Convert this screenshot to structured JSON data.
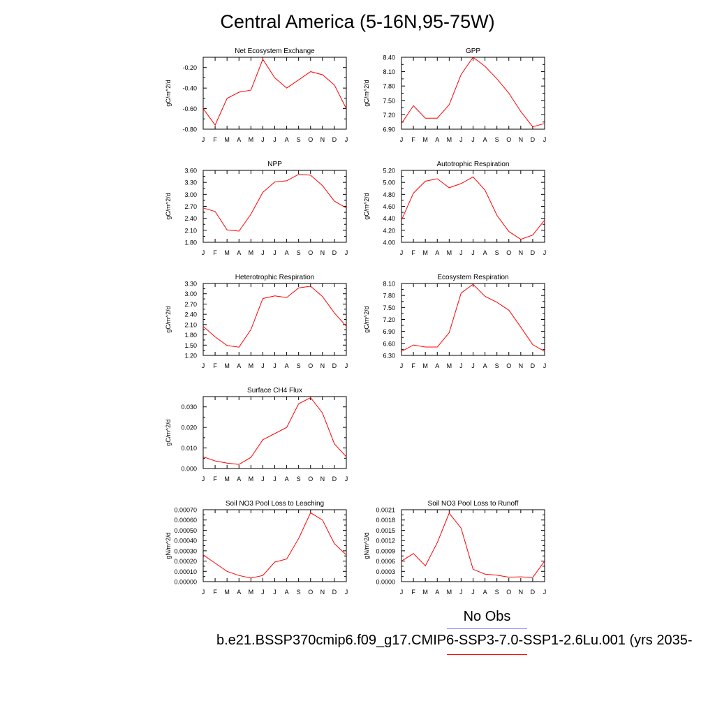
{
  "page": {
    "title": "Central America (5-16N,95-75W)",
    "legend_obs": "No Obs",
    "legend_run": "b.e21.BSSP370cmip6.f09_g17.CMIP6-SSP3-7.0-SSP1-2.6Lu.001 (yrs 2035-",
    "obs_color": "#8080ff",
    "run_color": "#ff0000"
  },
  "chart_data": [
    {
      "type": "line",
      "title": "Net Ecosystem Exchange",
      "ylabel": "gC/m^2/d",
      "categories": [
        "J",
        "F",
        "M",
        "A",
        "M",
        "J",
        "J",
        "A",
        "S",
        "O",
        "N",
        "D",
        "J"
      ],
      "yticks": [
        "-0.80",
        "-0.60",
        "-0.40",
        "-0.20"
      ],
      "ylim": [
        -0.8,
        -0.1
      ],
      "series": [
        {
          "values": [
            -0.6,
            -0.76,
            -0.5,
            -0.44,
            -0.42,
            -0.12,
            -0.3,
            -0.4,
            -0.32,
            -0.24,
            -0.27,
            -0.37,
            -0.6
          ]
        }
      ]
    },
    {
      "type": "line",
      "title": "GPP",
      "ylabel": "gC/m^2/d",
      "categories": [
        "J",
        "F",
        "M",
        "A",
        "M",
        "J",
        "J",
        "A",
        "S",
        "O",
        "N",
        "D",
        "J"
      ],
      "yticks": [
        "6.90",
        "7.20",
        "7.50",
        "7.80",
        "8.10",
        "8.40"
      ],
      "ylim": [
        6.9,
        8.4
      ],
      "series": [
        {
          "values": [
            7.02,
            7.39,
            7.13,
            7.13,
            7.41,
            8.04,
            8.4,
            8.21,
            7.95,
            7.65,
            7.27,
            6.95,
            7.02
          ]
        }
      ]
    },
    {
      "type": "line",
      "title": "NPP",
      "ylabel": "gC/m^2/d",
      "categories": [
        "J",
        "F",
        "M",
        "A",
        "M",
        "J",
        "J",
        "A",
        "S",
        "O",
        "N",
        "D",
        "J"
      ],
      "yticks": [
        "1.80",
        "2.10",
        "2.40",
        "2.70",
        "3.00",
        "3.30",
        "3.60"
      ],
      "ylim": [
        1.8,
        3.6
      ],
      "series": [
        {
          "values": [
            2.66,
            2.57,
            2.11,
            2.08,
            2.5,
            3.05,
            3.31,
            3.34,
            3.5,
            3.48,
            3.22,
            2.83,
            2.66
          ]
        }
      ]
    },
    {
      "type": "line",
      "title": "Autotrophic Respiration",
      "ylabel": "gC/m^2/d",
      "categories": [
        "J",
        "F",
        "M",
        "A",
        "M",
        "J",
        "J",
        "A",
        "S",
        "O",
        "N",
        "D",
        "J"
      ],
      "yticks": [
        "4.00",
        "4.20",
        "4.40",
        "4.60",
        "4.80",
        "5.00",
        "5.20"
      ],
      "ylim": [
        4.0,
        5.2
      ],
      "series": [
        {
          "values": [
            4.37,
            4.82,
            5.02,
            5.06,
            4.91,
            4.98,
            5.09,
            4.87,
            4.45,
            4.18,
            4.05,
            4.12,
            4.37
          ]
        }
      ]
    },
    {
      "type": "line",
      "title": "Heterotrophic Respiration",
      "ylabel": "gC/m^2/d",
      "categories": [
        "J",
        "F",
        "M",
        "A",
        "M",
        "J",
        "J",
        "A",
        "S",
        "O",
        "N",
        "D",
        "J"
      ],
      "yticks": [
        "1.20",
        "1.50",
        "1.80",
        "2.10",
        "2.40",
        "2.70",
        "3.00",
        "3.30"
      ],
      "ylim": [
        1.2,
        3.3
      ],
      "series": [
        {
          "values": [
            2.05,
            1.74,
            1.49,
            1.44,
            1.95,
            2.86,
            2.94,
            2.89,
            3.17,
            3.22,
            2.92,
            2.44,
            2.05
          ]
        }
      ]
    },
    {
      "type": "line",
      "title": "Ecosystem Respiration",
      "ylabel": "gC/m^2/d",
      "categories": [
        "J",
        "F",
        "M",
        "A",
        "M",
        "J",
        "J",
        "A",
        "S",
        "O",
        "N",
        "D",
        "J"
      ],
      "yticks": [
        "6.30",
        "6.60",
        "6.90",
        "7.20",
        "7.50",
        "7.80",
        "8.10"
      ],
      "ylim": [
        6.3,
        8.1
      ],
      "series": [
        {
          "values": [
            6.4,
            6.56,
            6.51,
            6.51,
            6.87,
            7.86,
            8.08,
            7.78,
            7.63,
            7.43,
            7.01,
            6.57,
            6.4
          ]
        }
      ]
    },
    {
      "type": "line",
      "title": "Surface CH4 Flux",
      "ylabel": "gC/m^2/d",
      "categories": [
        "J",
        "F",
        "M",
        "A",
        "M",
        "J",
        "J",
        "A",
        "S",
        "O",
        "N",
        "D",
        "J"
      ],
      "yticks": [
        "0.000",
        "0.010",
        "0.020",
        "0.030"
      ],
      "ylim": [
        0.0,
        0.035
      ],
      "series": [
        {
          "values": [
            0.0057,
            0.0037,
            0.0026,
            0.002,
            0.0054,
            0.014,
            0.017,
            0.02,
            0.0315,
            0.0345,
            0.027,
            0.012,
            0.0057
          ]
        }
      ]
    },
    {
      "type": "line",
      "title": "Soil NO3 Pool Loss to Leaching",
      "ylabel": "gN/m^2/d",
      "categories": [
        "J",
        "F",
        "M",
        "A",
        "M",
        "J",
        "J",
        "A",
        "S",
        "O",
        "N",
        "D",
        "J"
      ],
      "yticks": [
        "0.00000",
        "0.00010",
        "0.00020",
        "0.00030",
        "0.00040",
        "0.00050",
        "0.00060",
        "0.00070"
      ],
      "ylim": [
        0.0,
        0.0007
      ],
      "series": [
        {
          "values": [
            0.00026,
            0.00018,
            0.0001,
            6e-05,
            3.5e-05,
            6e-05,
            0.00019,
            0.00022,
            0.00042,
            0.00067,
            0.0006,
            0.00037,
            0.00026
          ]
        }
      ]
    },
    {
      "type": "line",
      "title": "Soil NO3 Pool Loss to Runoff",
      "ylabel": "gN/m^2/d",
      "categories": [
        "J",
        "F",
        "M",
        "A",
        "M",
        "J",
        "J",
        "A",
        "S",
        "O",
        "N",
        "D",
        "J"
      ],
      "yticks": [
        "0.0000",
        "0.0003",
        "0.0006",
        "0.0009",
        "0.0012",
        "0.0015",
        "0.0018",
        "0.0021"
      ],
      "ylim": [
        0.0,
        0.0021
      ],
      "series": [
        {
          "values": [
            0.0006,
            0.00082,
            0.00046,
            0.00114,
            0.002,
            0.00156,
            0.00036,
            0.00022,
            0.00019,
            0.00013,
            0.00014,
            0.00012,
            0.0006
          ]
        }
      ]
    }
  ]
}
